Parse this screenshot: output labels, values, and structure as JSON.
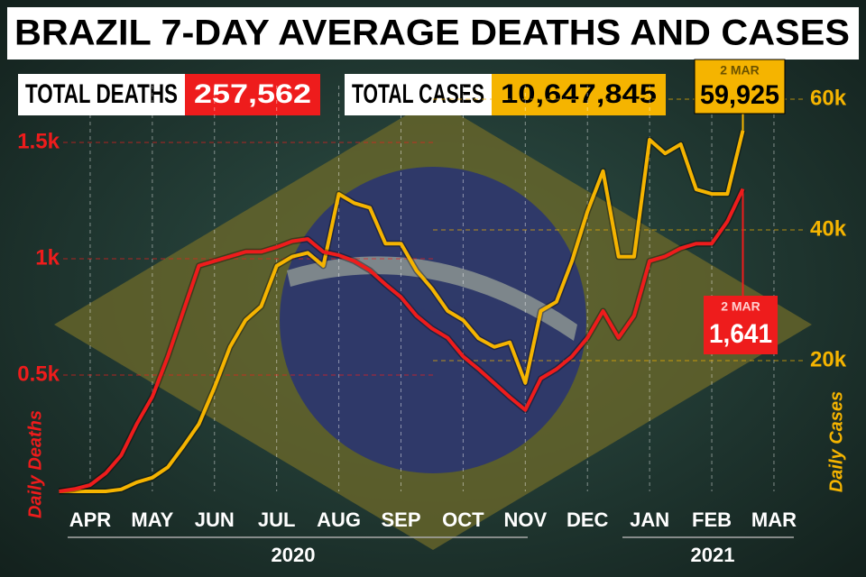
{
  "chart_data": {
    "type": "line",
    "title": "BRAZIL 7-DAY AVERAGE DEATHS AND CASES",
    "totals": [
      {
        "label": "TOTAL DEATHS",
        "value": "257,562",
        "color": "#ee1c1c"
      },
      {
        "label": "TOTAL CASES",
        "value": "10,647,845",
        "color": "#f5b400"
      }
    ],
    "categories": [
      null,
      null,
      "APR",
      null,
      null,
      null,
      "MAY",
      null,
      null,
      null,
      "JUN",
      null,
      null,
      null,
      "JUL",
      null,
      null,
      null,
      "AUG",
      null,
      null,
      null,
      "SEP",
      null,
      null,
      null,
      "OCT",
      null,
      null,
      null,
      "NOV",
      null,
      null,
      null,
      "DEC",
      null,
      null,
      null,
      "JAN",
      null,
      null,
      null,
      "FEB",
      null,
      null,
      null,
      "MAR"
    ],
    "years": [
      "2020",
      "2021"
    ],
    "series": [
      {
        "name": "Daily Deaths",
        "color": "#ee1c1c",
        "axis": "y",
        "values": [
          0,
          10,
          27,
          78,
          155,
          290,
          407,
          580,
          775,
          970,
          990,
          1010,
          1030,
          1030,
          1050,
          1075,
          1085,
          1030,
          1015,
          990,
          950,
          890,
          835,
          755,
          700,
          660,
          580,
          525,
          465,
          405,
          350,
          485,
          525,
          580,
          660,
          775,
          660,
          755,
          990,
          1010,
          1045,
          1065,
          1065,
          1160,
          1300,
          null,
          null
        ]
      },
      {
        "name": "Daily Cases",
        "color": "#f5b400",
        "axis": "y2",
        "values": [
          0,
          0,
          0,
          0,
          300,
          1400,
          2100,
          3700,
          6900,
          10300,
          15900,
          22100,
          26200,
          28300,
          34500,
          35900,
          36500,
          34500,
          45500,
          44100,
          43400,
          37900,
          37900,
          33800,
          31000,
          27600,
          26200,
          23400,
          22100,
          22800,
          16600,
          27600,
          29000,
          35200,
          42800,
          49000,
          35900,
          35900,
          53800,
          51700,
          53100,
          46200,
          45500,
          45500,
          55200,
          null,
          null
        ]
      }
    ],
    "annotations": [
      {
        "date": "2 MAR",
        "text": "59,925",
        "series": 1
      },
      {
        "date": "2 MAR",
        "text": "1,641",
        "series": 0
      }
    ],
    "ylim": [
      0,
      1700
    ],
    "yticks": [
      {
        "value": 500,
        "label": "0.5k"
      },
      {
        "value": 1000,
        "label": "1k"
      },
      {
        "value": 1500,
        "label": "1.5k"
      }
    ],
    "y2lim": [
      0,
      60500
    ],
    "y2ticks": [
      {
        "value": 20000,
        "label": "20k"
      },
      {
        "value": 40000,
        "label": "40k"
      },
      {
        "value": 60000,
        "label": "60k"
      }
    ],
    "grid": true
  }
}
